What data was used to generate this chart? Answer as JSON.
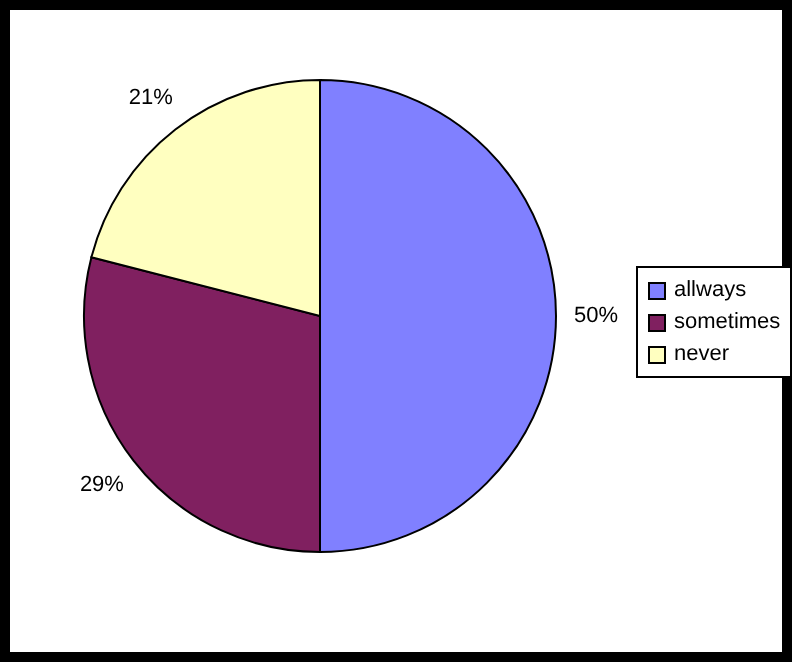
{
  "chart_data": {
    "type": "pie",
    "categories": [
      "allways",
      "sometimes",
      "never"
    ],
    "values": [
      50,
      29,
      21
    ],
    "value_labels": [
      "50%",
      "29%",
      "21%"
    ],
    "colors": [
      "#8080ff",
      "#802060",
      "#ffffc0"
    ],
    "legend": "right"
  }
}
